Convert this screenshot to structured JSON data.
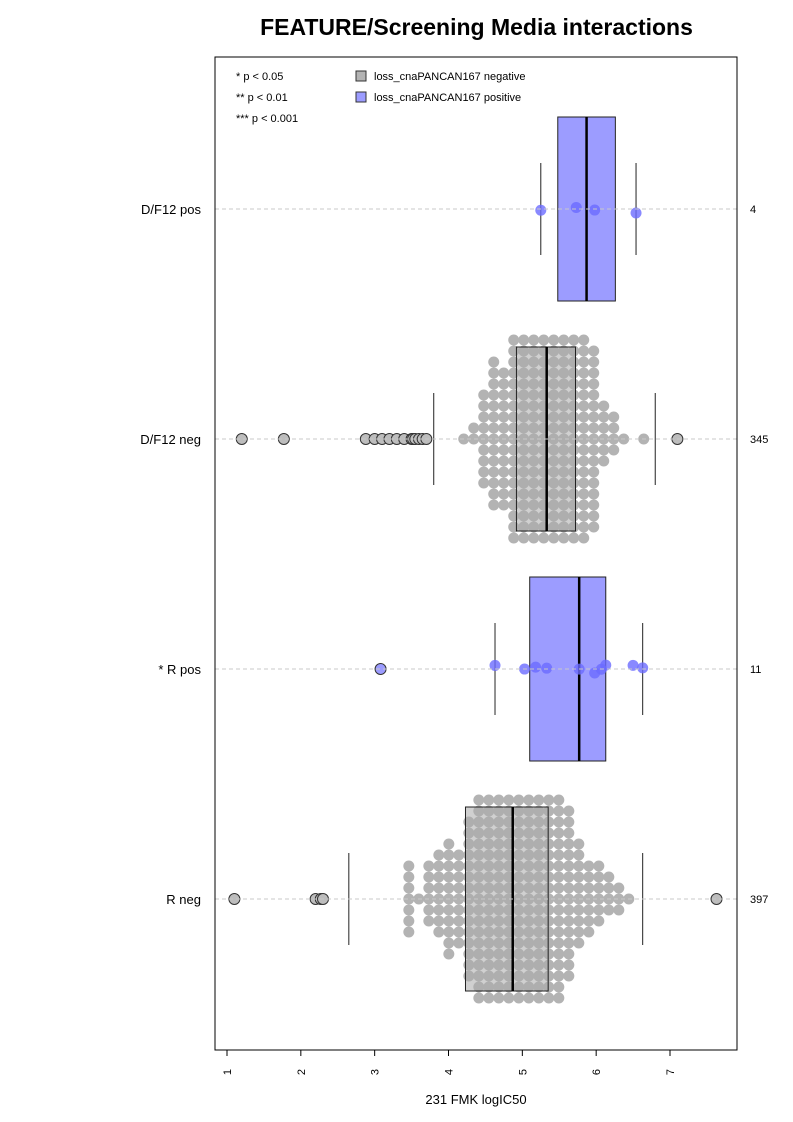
{
  "chart_data": {
    "type": "boxplot",
    "title": "FEATURE/Screening Media interactions",
    "xlabel": "231 FMK logIC50",
    "xlim": [
      0.9,
      7.95
    ],
    "x_ticks": [
      "1",
      "2",
      "3",
      "4",
      "5",
      "6",
      "7"
    ],
    "grid": false,
    "significance_legend": [
      "* p < 0.05",
      "** p < 0.01",
      "*** p < 0.001"
    ],
    "legend": {
      "position": "top",
      "entries": [
        {
          "label": "loss_cnaPANCAN167 negative",
          "color": "#b3b3b3"
        },
        {
          "label": "loss_cnaPANCAN167 positive",
          "color": "#9c9cff"
        }
      ]
    },
    "groups": [
      {
        "label": "D/F12 pos",
        "count": "4",
        "status": "positive",
        "whisker_low": 5.25,
        "q1": 5.48,
        "median": 5.87,
        "q3": 6.26,
        "whisker_high": 6.54,
        "points": [
          5.25,
          5.73,
          5.98,
          6.54
        ]
      },
      {
        "label": "D/F12 neg",
        "count": "345",
        "status": "negative",
        "whisker_low": 3.8,
        "q1": 4.92,
        "median": 5.33,
        "q3": 5.72,
        "whisker_high": 6.8,
        "outliers": [
          1.2,
          1.77,
          2.88,
          3.0,
          3.1,
          3.2,
          3.3,
          3.4,
          3.5,
          3.52,
          3.55,
          3.6,
          3.65,
          3.7,
          7.1
        ],
        "n_swarm": 345
      },
      {
        "label": "* R pos",
        "count": "11",
        "status": "positive",
        "whisker_low": 4.63,
        "q1": 5.1,
        "median": 5.77,
        "q3": 6.13,
        "whisker_high": 6.63,
        "outliers": [
          3.08
        ],
        "points": [
          4.63,
          5.03,
          5.18,
          5.33,
          5.77,
          5.98,
          6.07,
          6.13,
          6.5,
          6.63
        ]
      },
      {
        "label": "R neg",
        "count": "397",
        "status": "negative",
        "whisker_low": 2.65,
        "q1": 4.23,
        "median": 4.87,
        "q3": 5.35,
        "whisker_high": 6.63,
        "outliers": [
          1.1,
          2.2,
          2.27,
          2.3,
          7.63
        ],
        "n_swarm": 397
      }
    ]
  }
}
